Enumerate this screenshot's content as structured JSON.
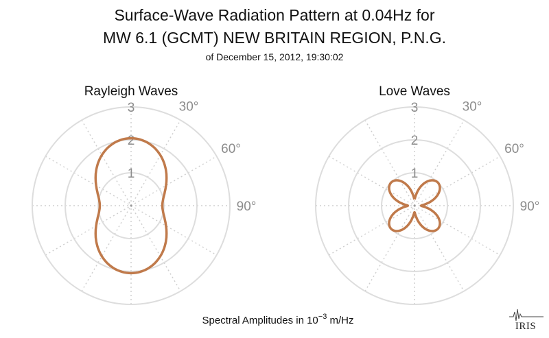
{
  "title_line1": "Surface-Wave Radiation Pattern at 0.04Hz for",
  "title_line2": "MW 6.1 (GCMT) NEW BRITAIN REGION, P.N.G.",
  "subtitle": "of December 15, 2012, 19:30:02",
  "footer": {
    "prefix": "Spectral Amplitudes in ",
    "base": "10",
    "exponent": "−3",
    "suffix": " m/Hz"
  },
  "logo": "IRIS",
  "colors": {
    "pattern": "#c07a4b",
    "rings": "#dddddd",
    "ticks": "#8c8c8c"
  },
  "chart_data": [
    {
      "type": "polar-line",
      "title": "Rayleigh Waves",
      "r_ticks": [
        "1",
        "2",
        "3"
      ],
      "angle_ticks": [
        "30°",
        "60°",
        "90°"
      ],
      "rlim": [
        0,
        3
      ],
      "grid": true,
      "series": [
        {
          "theta_deg": [
            0,
            30,
            60,
            90,
            120,
            150,
            180,
            210,
            240,
            270,
            300,
            330
          ],
          "r": [
            2.05,
            1.75,
            1.05,
            0.95,
            1.05,
            1.75,
            2.05,
            1.75,
            1.05,
            0.95,
            1.05,
            1.75
          ]
        }
      ]
    },
    {
      "type": "polar-line",
      "title": "Love Waves",
      "r_ticks": [
        "1",
        "2",
        "3"
      ],
      "angle_ticks": [
        "30°",
        "60°",
        "90°"
      ],
      "rlim": [
        0,
        3
      ],
      "grid": true,
      "series": [
        {
          "theta_deg": [
            0,
            45,
            135,
            180,
            225,
            315
          ],
          "r": [
            0.2,
            1.0,
            1.0,
            0.2,
            1.0,
            1.0
          ]
        }
      ]
    }
  ]
}
